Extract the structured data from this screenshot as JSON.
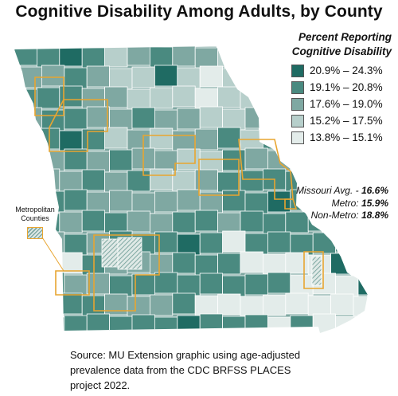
{
  "title": "Cognitive Disability Among Adults, by County",
  "legend": {
    "title_line1": "Percent Reporting",
    "title_line2": "Cognitive Disability",
    "items": [
      {
        "label": "20.9% – 24.3%",
        "color": "#1f6b63"
      },
      {
        "label": "19.1% – 20.8%",
        "color": "#4a8a80"
      },
      {
        "label": "17.6% – 19.0%",
        "color": "#7fa8a2"
      },
      {
        "label": "15.2% – 17.5%",
        "color": "#b7cfcb"
      },
      {
        "label": "13.8% – 15.1%",
        "color": "#e3ecea"
      }
    ]
  },
  "averages": {
    "missouri_label": "Missouri Avg. -",
    "missouri_value": "16.6%",
    "metro_label": "Metro:",
    "metro_value": "15.9%",
    "nonmetro_label": "Non-Metro:",
    "nonmetro_value": "18.8%"
  },
  "metro_key": {
    "line1": "Metropolitan",
    "line2": "Counties",
    "outline_color": "#e8a530"
  },
  "source": "Source: MU Extension graphic using age-adjusted prevalence data from the CDC BRFSS PLACES project 2022."
}
